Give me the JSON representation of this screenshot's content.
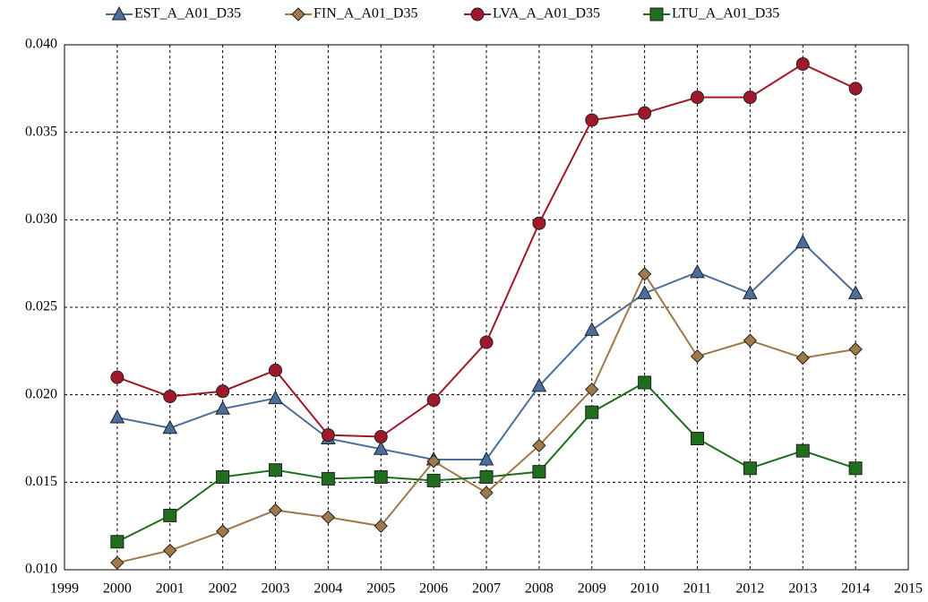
{
  "chart_data": {
    "type": "line",
    "x": [
      2000,
      2001,
      2002,
      2003,
      2004,
      2005,
      2006,
      2007,
      2008,
      2009,
      2010,
      2011,
      2012,
      2013,
      2014
    ],
    "series": [
      {
        "name": "EST_A_A01_D35",
        "color": "#4a6f9c",
        "marker": "triangle",
        "values": [
          0.0187,
          0.0181,
          0.0192,
          0.0198,
          0.0175,
          0.0169,
          0.0163,
          0.0163,
          0.0205,
          0.0237,
          0.0258,
          0.027,
          0.0258,
          0.0287,
          0.0258
        ]
      },
      {
        "name": "FIN_A_A01_D35",
        "color": "#a0784a",
        "marker": "diamond",
        "values": [
          0.0104,
          0.0111,
          0.0122,
          0.0134,
          0.013,
          0.0125,
          0.0162,
          0.0144,
          0.0171,
          0.0203,
          0.0269,
          0.0222,
          0.0231,
          0.0221,
          0.0226
        ]
      },
      {
        "name": "LVA_A_A01_D35",
        "color": "#a0182a",
        "marker": "circle",
        "values": [
          0.021,
          0.0199,
          0.0202,
          0.0214,
          0.0177,
          0.0176,
          0.0197,
          0.023,
          0.0298,
          0.0357,
          0.0361,
          0.037,
          0.037,
          0.0389,
          0.0375
        ]
      },
      {
        "name": "LTU_A_A01_D35",
        "color": "#1e6e1e",
        "marker": "square",
        "values": [
          0.0116,
          0.0131,
          0.0153,
          0.0157,
          0.0152,
          0.0153,
          0.0151,
          0.0153,
          0.0156,
          0.019,
          0.0207,
          0.0175,
          0.0158,
          0.0168,
          0.0158
        ]
      }
    ],
    "xlim": [
      1999,
      2015
    ],
    "xticks": [
      1999,
      2000,
      2001,
      2002,
      2003,
      2004,
      2005,
      2006,
      2007,
      2008,
      2009,
      2010,
      2011,
      2012,
      2013,
      2014,
      2015
    ],
    "ylim": [
      0.01,
      0.04
    ],
    "yticks": [
      {
        "value": 0.01,
        "label": "0.010"
      },
      {
        "value": 0.015,
        "label": "0.015"
      },
      {
        "value": 0.02,
        "label": "0.020"
      },
      {
        "value": 0.025,
        "label": "0.025"
      },
      {
        "value": 0.03,
        "label": "0.030"
      },
      {
        "value": 0.035,
        "label": "0.035"
      },
      {
        "value": 0.04,
        "label": "0.040"
      }
    ],
    "grid": true,
    "legend": "top"
  }
}
